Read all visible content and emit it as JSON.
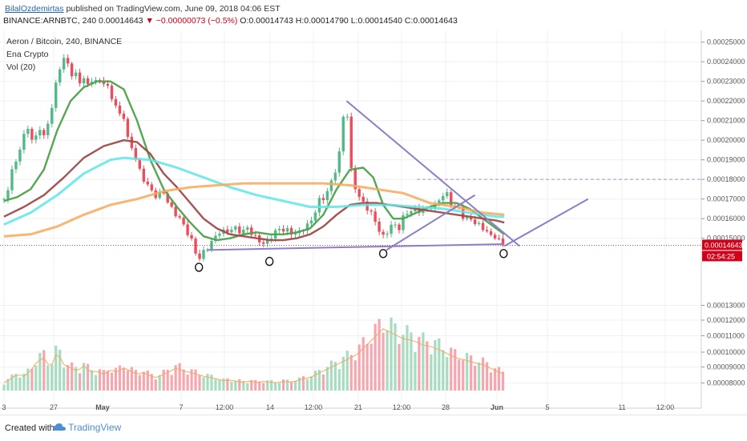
{
  "header": {
    "author": "BilalOzdemirtas",
    "published": "published on TradingView.com, June 09, 2018 04:06 EST",
    "symbol": "BINANCE:ARNBTC, 240",
    "last": "0.00014643",
    "change": "−0.00000073 (−0.5%)",
    "ohlc_o": "O:0.00014743",
    "ohlc_h": "H:0.00014790",
    "ohlc_l": "L:0.00014540",
    "ohlc_c": "C:0.00014643"
  },
  "legend": {
    "title": "Aeron / Bitcoin, 240, BINANCE",
    "indicator": "Ena Crypto",
    "volume": "Vol (20)"
  },
  "footer": {
    "created": "Created with",
    "brand": "TradingView"
  },
  "colors": {
    "up": "#53b987",
    "down": "#eb4d5c",
    "ma_green": "#4ca24a",
    "ma_brown": "#a04a4a",
    "ma_cyan": "#5ee5e5",
    "ma_orange": "#f4a95c",
    "trendline": "#8c7fc9",
    "price_line": "#d0021b"
  },
  "chart_data": {
    "type": "candlestick",
    "yticks": [
      "0.00025000",
      "0.00024000",
      "0.00023000",
      "0.00022000",
      "0.00021000",
      "0.00020000",
      "0.00019000",
      "0.00018000",
      "0.00017000",
      "0.00016000",
      "0.00015000",
      "0.00013000",
      "0.00012000",
      "0.00011000",
      "0.00010000",
      "0.00009000",
      "0.00008000"
    ],
    "xticks": [
      "3",
      "27",
      "May",
      "7",
      "12:00",
      "14",
      "12:00",
      "21",
      "12:00",
      "28",
      "Jun",
      "5",
      "11",
      "12:00"
    ],
    "current_price_label": "0.00014643",
    "countdown_label": "02:54:25",
    "price_range": [
      0.000127,
      0.000256
    ],
    "price_path": [
      [
        0,
        0.00017
      ],
      [
        4,
        0.000172
      ],
      [
        10,
        0.000182
      ],
      [
        18,
        0.00019
      ],
      [
        25,
        0.000196
      ],
      [
        32,
        0.000205
      ],
      [
        38,
        0.000208
      ],
      [
        44,
        0.000195
      ],
      [
        52,
        0.00021
      ],
      [
        58,
        0.000198
      ],
      [
        64,
        0.000208
      ],
      [
        70,
        0.000212
      ],
      [
        76,
        0.000225
      ],
      [
        82,
        0.000236
      ],
      [
        88,
        0.00024
      ],
      [
        94,
        0.000243
      ],
      [
        100,
        0.000232
      ],
      [
        106,
        0.000236
      ],
      [
        112,
        0.000228
      ],
      [
        118,
        0.000234
      ],
      [
        124,
        0.000226
      ],
      [
        130,
        0.000232
      ],
      [
        136,
        0.000229
      ],
      [
        142,
        0.000231
      ],
      [
        148,
        0.00023
      ],
      [
        154,
        0.000228
      ],
      [
        160,
        0.000224
      ],
      [
        166,
        0.000218
      ],
      [
        172,
        0.000216
      ],
      [
        176,
        0.00021
      ],
      [
        180,
        0.000212
      ],
      [
        184,
        0.000202
      ],
      [
        190,
        0.000198
      ],
      [
        196,
        0.000193
      ],
      [
        202,
        0.000186
      ],
      [
        208,
        0.000181
      ],
      [
        214,
        0.000178
      ],
      [
        220,
        0.000175
      ],
      [
        226,
        0.000172
      ],
      [
        232,
        0.000171
      ],
      [
        238,
        0.000175
      ],
      [
        244,
        0.00017
      ],
      [
        250,
        0.000166
      ],
      [
        256,
        0.000163
      ],
      [
        262,
        0.000161
      ],
      [
        268,
        0.000158
      ],
      [
        274,
        0.000154
      ],
      [
        280,
        0.00015
      ],
      [
        286,
        0.000146
      ],
      [
        291,
        0.000138
      ],
      [
        296,
        0.000141
      ],
      [
        302,
        0.000144
      ],
      [
        308,
        0.000146
      ],
      [
        314,
        0.000149
      ],
      [
        320,
        0.000152
      ],
      [
        326,
        0.000154
      ],
      [
        332,
        0.000153
      ],
      [
        338,
        0.000154
      ],
      [
        344,
        0.000155
      ],
      [
        350,
        0.000155
      ],
      [
        356,
        0.000153
      ],
      [
        362,
        0.000154
      ],
      [
        368,
        0.000156
      ],
      [
        374,
        0.000151
      ],
      [
        380,
        0.00015
      ],
      [
        386,
        0.000148
      ],
      [
        392,
        0.000147
      ],
      [
        398,
        0.000149
      ],
      [
        404,
        0.000152
      ],
      [
        410,
        0.000154
      ],
      [
        416,
        0.000155
      ],
      [
        422,
        0.000154
      ],
      [
        428,
        0.000154
      ],
      [
        434,
        0.000152
      ],
      [
        440,
        0.000153
      ],
      [
        446,
        0.000153
      ],
      [
        452,
        0.000156
      ],
      [
        458,
        0.000157
      ],
      [
        464,
        0.00016
      ],
      [
        470,
        0.000166
      ],
      [
        476,
        0.000171
      ],
      [
        482,
        0.00017
      ],
      [
        488,
        0.000176
      ],
      [
        494,
        0.00018
      ],
      [
        500,
        0.000187
      ],
      [
        505,
        0.000195
      ],
      [
        510,
        0.000212
      ],
      [
        515,
        0.000219
      ],
      [
        520,
        0.000188
      ],
      [
        526,
        0.000178
      ],
      [
        532,
        0.000172
      ],
      [
        538,
        0.000169
      ],
      [
        544,
        0.000166
      ],
      [
        550,
        0.000164
      ],
      [
        556,
        0.00016
      ],
      [
        562,
        0.000156
      ],
      [
        568,
        0.00015
      ],
      [
        574,
        0.000152
      ],
      [
        580,
        0.000156
      ],
      [
        586,
        0.000158
      ],
      [
        592,
        0.000153
      ],
      [
        598,
        0.00016
      ],
      [
        604,
        0.000162
      ],
      [
        610,
        0.000164
      ],
      [
        616,
        0.000165
      ],
      [
        622,
        0.000163
      ],
      [
        628,
        0.000166
      ],
      [
        634,
        0.000163
      ],
      [
        640,
        0.000167
      ],
      [
        646,
        0.000165
      ],
      [
        652,
        0.000169
      ],
      [
        658,
        0.000171
      ],
      [
        664,
        0.000174
      ],
      [
        670,
        0.000169
      ],
      [
        676,
        0.000165
      ],
      [
        682,
        0.000167
      ],
      [
        688,
        0.000162
      ],
      [
        694,
        0.000159
      ],
      [
        700,
        0.000161
      ],
      [
        706,
        0.000158
      ],
      [
        712,
        0.000157
      ],
      [
        718,
        0.000156
      ],
      [
        724,
        0.000154
      ],
      [
        730,
        0.000151
      ],
      [
        736,
        0.000152
      ],
      [
        742,
        0.000149
      ],
      [
        748,
        0.000148
      ],
      [
        752,
        0.000146
      ]
    ],
    "series": [
      {
        "color": "#4ca24a",
        "points": [
          [
            0,
            0.000169
          ],
          [
            20,
            0.000171
          ],
          [
            40,
            0.000175
          ],
          [
            60,
            0.000185
          ],
          [
            80,
            0.000205
          ],
          [
            100,
            0.00022
          ],
          [
            120,
            0.000227
          ],
          [
            140,
            0.00023
          ],
          [
            160,
            0.00023
          ],
          [
            180,
            0.000226
          ],
          [
            200,
            0.00021
          ],
          [
            220,
            0.00019
          ],
          [
            240,
            0.000175
          ],
          [
            260,
            0.000166
          ],
          [
            280,
            0.000158
          ],
          [
            300,
            0.000151
          ],
          [
            320,
            0.000149
          ],
          [
            340,
            0.00015
          ],
          [
            360,
            0.000152
          ],
          [
            380,
            0.000153
          ],
          [
            400,
            0.000152
          ],
          [
            420,
            0.000152
          ],
          [
            440,
            0.000153
          ],
          [
            460,
            0.000155
          ],
          [
            480,
            0.000162
          ],
          [
            500,
            0.000175
          ],
          [
            520,
            0.000185
          ],
          [
            540,
            0.000186
          ],
          [
            555,
            0.000181
          ],
          [
            570,
            0.000167
          ],
          [
            585,
            0.00016
          ],
          [
            600,
            0.00016
          ],
          [
            620,
            0.000163
          ],
          [
            640,
            0.000166
          ],
          [
            660,
            0.000168
          ],
          [
            680,
            0.000168
          ],
          [
            700,
            0.000165
          ],
          [
            720,
            0.00016
          ],
          [
            740,
            0.000155
          ],
          [
            752,
            0.000152
          ]
        ]
      },
      {
        "color": "#a04a4a",
        "points": [
          [
            0,
            0.000161
          ],
          [
            30,
            0.000166
          ],
          [
            60,
            0.000172
          ],
          [
            90,
            0.000181
          ],
          [
            120,
            0.000191
          ],
          [
            150,
            0.000197
          ],
          [
            180,
            0.0002
          ],
          [
            200,
            0.000199
          ],
          [
            220,
            0.000193
          ],
          [
            240,
            0.000183
          ],
          [
            260,
            0.000176
          ],
          [
            280,
            0.000168
          ],
          [
            300,
            0.00016
          ],
          [
            320,
            0.000155
          ],
          [
            340,
            0.000152
          ],
          [
            360,
            0.000151
          ],
          [
            380,
            0.00015
          ],
          [
            400,
            0.000149
          ],
          [
            420,
            0.000149
          ],
          [
            440,
            0.00015
          ],
          [
            460,
            0.000152
          ],
          [
            480,
            0.000156
          ],
          [
            500,
            0.000162
          ],
          [
            520,
            0.000167
          ],
          [
            540,
            0.000168
          ],
          [
            560,
            0.000168
          ],
          [
            580,
            0.000167
          ],
          [
            600,
            0.000166
          ],
          [
            620,
            0.000165
          ],
          [
            640,
            0.000164
          ],
          [
            660,
            0.000163
          ],
          [
            680,
            0.000162
          ],
          [
            700,
            0.000161
          ],
          [
            720,
            0.00016
          ],
          [
            740,
            0.000159
          ],
          [
            752,
            0.000158
          ]
        ]
      },
      {
        "color": "#5ee5e5",
        "points": [
          [
            0,
            0.000157
          ],
          [
            40,
            0.000163
          ],
          [
            80,
            0.000172
          ],
          [
            120,
            0.000183
          ],
          [
            160,
            0.00019
          ],
          [
            180,
            0.000191
          ],
          [
            220,
            0.00019
          ],
          [
            260,
            0.000186
          ],
          [
            300,
            0.000181
          ],
          [
            340,
            0.000176
          ],
          [
            380,
            0.000172
          ],
          [
            420,
            0.000169
          ],
          [
            460,
            0.000166
          ],
          [
            500,
            0.000166
          ],
          [
            540,
            0.000167
          ],
          [
            580,
            0.000167
          ],
          [
            620,
            0.000166
          ],
          [
            660,
            0.000165
          ],
          [
            700,
            0.000163
          ],
          [
            740,
            0.000161
          ],
          [
            752,
            0.000161
          ]
        ]
      },
      {
        "color": "#f4a95c",
        "points": [
          [
            0,
            0.000151
          ],
          [
            40,
            0.000152
          ],
          [
            80,
            0.000156
          ],
          [
            120,
            0.000162
          ],
          [
            160,
            0.000167
          ],
          [
            200,
            0.00017
          ],
          [
            240,
            0.000174
          ],
          [
            280,
            0.000176
          ],
          [
            320,
            0.000177
          ],
          [
            360,
            0.000178
          ],
          [
            400,
            0.000178
          ],
          [
            440,
            0.000178
          ],
          [
            480,
            0.000178
          ],
          [
            520,
            0.000177
          ],
          [
            560,
            0.000175
          ],
          [
            600,
            0.000173
          ],
          [
            640,
            0.000168
          ],
          [
            680,
            0.000166
          ],
          [
            720,
            0.000163
          ],
          [
            752,
            0.000162
          ]
        ]
      }
    ],
    "trendlines": [
      [
        [
          305,
          0.000144
        ],
        [
          752,
          0.000147
        ]
      ],
      [
        [
          515,
          0.00022
        ],
        [
          775,
          0.000146
        ]
      ],
      [
        [
          575,
          0.000144
        ],
        [
          708,
          0.000172
        ]
      ],
      [
        [
          752,
          0.000146
        ],
        [
          878,
          0.00017
        ]
      ]
    ],
    "dashed_level": 0.00018,
    "marked_lows": [
      [
        293,
        0.000136
      ],
      [
        399,
        0.000139
      ],
      [
        570,
        0.000143
      ],
      [
        751,
        0.000143
      ]
    ],
    "volume_path": [
      [
        0,
        0.12
      ],
      [
        10,
        0.18
      ],
      [
        20,
        0.25
      ],
      [
        30,
        0.22
      ],
      [
        40,
        0.3
      ],
      [
        50,
        0.45
      ],
      [
        60,
        0.5
      ],
      [
        70,
        0.35
      ],
      [
        80,
        0.6
      ],
      [
        90,
        0.4
      ],
      [
        100,
        0.35
      ],
      [
        110,
        0.3
      ],
      [
        120,
        0.38
      ],
      [
        130,
        0.28
      ],
      [
        140,
        0.3
      ],
      [
        150,
        0.25
      ],
      [
        160,
        0.32
      ],
      [
        170,
        0.28
      ],
      [
        180,
        0.35
      ],
      [
        190,
        0.3
      ],
      [
        200,
        0.25
      ],
      [
        210,
        0.28
      ],
      [
        220,
        0.22
      ],
      [
        230,
        0.2
      ],
      [
        240,
        0.25
      ],
      [
        250,
        0.3
      ],
      [
        260,
        0.35
      ],
      [
        270,
        0.3
      ],
      [
        280,
        0.28
      ],
      [
        290,
        0.25
      ],
      [
        300,
        0.22
      ],
      [
        310,
        0.2
      ],
      [
        320,
        0.18
      ],
      [
        330,
        0.15
      ],
      [
        340,
        0.16
      ],
      [
        350,
        0.14
      ],
      [
        360,
        0.13
      ],
      [
        370,
        0.15
      ],
      [
        380,
        0.12
      ],
      [
        390,
        0.14
      ],
      [
        400,
        0.13
      ],
      [
        410,
        0.12
      ],
      [
        420,
        0.14
      ],
      [
        430,
        0.13
      ],
      [
        440,
        0.15
      ],
      [
        450,
        0.18
      ],
      [
        460,
        0.2
      ],
      [
        470,
        0.25
      ],
      [
        480,
        0.3
      ],
      [
        490,
        0.35
      ],
      [
        500,
        0.4
      ],
      [
        510,
        0.45
      ],
      [
        520,
        0.5
      ],
      [
        530,
        0.55
      ],
      [
        540,
        0.65
      ],
      [
        550,
        0.75
      ],
      [
        560,
        0.85
      ],
      [
        570,
        0.95
      ],
      [
        580,
        0.9
      ],
      [
        590,
        0.85
      ],
      [
        600,
        0.8
      ],
      [
        610,
        0.78
      ],
      [
        620,
        0.75
      ],
      [
        630,
        0.7
      ],
      [
        640,
        0.68
      ],
      [
        650,
        0.65
      ],
      [
        660,
        0.6
      ],
      [
        670,
        0.55
      ],
      [
        680,
        0.5
      ],
      [
        690,
        0.48
      ],
      [
        700,
        0.45
      ],
      [
        710,
        0.42
      ],
      [
        720,
        0.4
      ],
      [
        730,
        0.35
      ],
      [
        740,
        0.3
      ],
      [
        752,
        0.25
      ]
    ]
  }
}
